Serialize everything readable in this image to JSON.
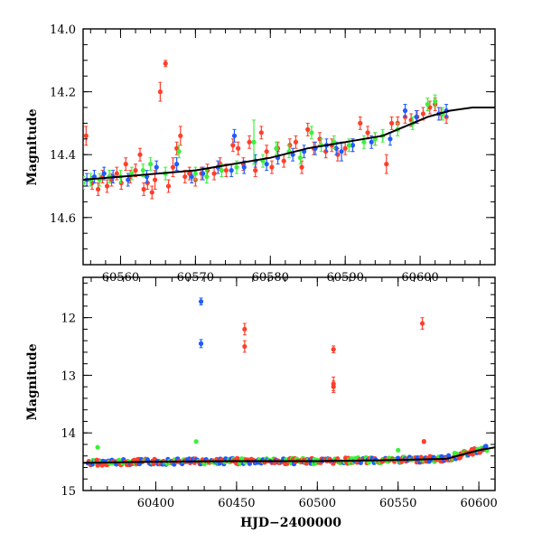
{
  "colors": {
    "red": "#ff3f2a",
    "blue": "#1f5bff",
    "green": "#3cf03c",
    "black": "#000000"
  },
  "chart_data": [
    {
      "type": "scatter",
      "ylabel": "Magnitude",
      "xlabel": "",
      "xlim": [
        60555,
        60610
      ],
      "ylim": [
        14.75,
        14.0
      ],
      "inverted_y": true,
      "xticks_major": [
        60560,
        60570,
        60580,
        60590,
        60600
      ],
      "yticks_major": [
        14.0,
        14.2,
        14.4,
        14.6
      ],
      "xtick_minor_step": 2,
      "ytick_minor_step": 0.05,
      "grid": false,
      "model_curve": {
        "x": [
          60555,
          60560,
          60565,
          60570,
          60575,
          60580,
          60585,
          60590,
          60595,
          60598,
          60601,
          60604,
          60607,
          60610
        ],
        "y": [
          14.48,
          14.47,
          14.46,
          14.45,
          14.43,
          14.41,
          14.38,
          14.36,
          14.34,
          14.31,
          14.28,
          14.26,
          14.25,
          14.25
        ]
      },
      "series": [
        {
          "color": "red",
          "points": [
            [
              60555.4,
              14.34,
              0.03
            ],
            [
              60556.2,
              14.49,
              0.02
            ],
            [
              60557.0,
              14.51,
              0.02
            ],
            [
              60557.6,
              14.47,
              0.02
            ],
            [
              60558.2,
              14.5,
              0.02
            ],
            [
              60558.8,
              14.48,
              0.02
            ],
            [
              60559.5,
              14.46,
              0.02
            ],
            [
              60560.1,
              14.49,
              0.02
            ],
            [
              60560.7,
              14.43,
              0.02
            ],
            [
              60561.3,
              14.47,
              0.02
            ],
            [
              60562.0,
              14.45,
              0.02
            ],
            [
              60562.6,
              14.4,
              0.02
            ],
            [
              60563.1,
              14.51,
              0.02
            ],
            [
              60563.6,
              14.49,
              0.02
            ],
            [
              60564.2,
              14.52,
              0.02
            ],
            [
              60564.6,
              14.48,
              0.03
            ],
            [
              60565.3,
              14.2,
              0.03
            ],
            [
              60566.0,
              14.11,
              0.01
            ],
            [
              60566.4,
              14.5,
              0.02
            ],
            [
              60567.0,
              14.44,
              0.03
            ],
            [
              60567.5,
              14.38,
              0.02
            ],
            [
              60568.0,
              14.34,
              0.03
            ],
            [
              60568.6,
              14.47,
              0.02
            ],
            [
              60569.2,
              14.46,
              0.02
            ],
            [
              60570.0,
              14.48,
              0.02
            ],
            [
              60570.8,
              14.46,
              0.02
            ],
            [
              60571.6,
              14.45,
              0.02
            ],
            [
              60572.5,
              14.46,
              0.02
            ],
            [
              60573.3,
              14.43,
              0.02
            ],
            [
              60574.1,
              14.45,
              0.02
            ],
            [
              60575.0,
              14.37,
              0.02
            ],
            [
              60575.7,
              14.38,
              0.02
            ],
            [
              60576.4,
              14.43,
              0.02
            ],
            [
              60577.2,
              14.36,
              0.02
            ],
            [
              60578.0,
              14.45,
              0.02
            ],
            [
              60578.8,
              14.33,
              0.02
            ],
            [
              60579.5,
              14.39,
              0.02
            ],
            [
              60580.2,
              14.44,
              0.02
            ],
            [
              60581.0,
              14.38,
              0.02
            ],
            [
              60581.8,
              14.42,
              0.02
            ],
            [
              60582.6,
              14.37,
              0.02
            ],
            [
              60583.4,
              14.36,
              0.02
            ],
            [
              60584.2,
              14.44,
              0.02
            ],
            [
              60585.0,
              14.32,
              0.02
            ],
            [
              60585.8,
              14.38,
              0.02
            ],
            [
              60586.6,
              14.35,
              0.02
            ],
            [
              60587.4,
              14.39,
              0.02
            ],
            [
              60588.2,
              14.37,
              0.02
            ],
            [
              60589.0,
              14.4,
              0.02
            ],
            [
              60590.0,
              14.38,
              0.02
            ],
            [
              60591.0,
              14.37,
              0.02
            ],
            [
              60592.0,
              14.3,
              0.02
            ],
            [
              60593.0,
              14.33,
              0.02
            ],
            [
              60594.0,
              14.35,
              0.02
            ],
            [
              60595.5,
              14.43,
              0.03
            ],
            [
              60596.2,
              14.3,
              0.02
            ],
            [
              60597.0,
              14.3,
              0.02
            ],
            [
              60598.0,
              14.28,
              0.02
            ],
            [
              60598.8,
              14.29,
              0.02
            ],
            [
              60599.6,
              14.28,
              0.02
            ],
            [
              60600.4,
              14.27,
              0.02
            ],
            [
              60601.3,
              14.25,
              0.02
            ],
            [
              60602.0,
              14.24,
              0.02
            ],
            [
              60602.8,
              14.27,
              0.02
            ],
            [
              60603.5,
              14.28,
              0.02
            ]
          ]
        },
        {
          "color": "blue",
          "points": [
            [
              60555.5,
              14.48,
              0.02
            ],
            [
              60556.5,
              14.47,
              0.02
            ],
            [
              60557.8,
              14.46,
              0.02
            ],
            [
              60559.0,
              14.47,
              0.02
            ],
            [
              60561.0,
              14.48,
              0.02
            ],
            [
              60563.5,
              14.47,
              0.02
            ],
            [
              60564.8,
              14.44,
              0.02
            ],
            [
              60567.5,
              14.43,
              0.02
            ],
            [
              60569.5,
              14.47,
              0.02
            ],
            [
              60571.0,
              14.46,
              0.02
            ],
            [
              60573.0,
              14.44,
              0.02
            ],
            [
              60574.8,
              14.45,
              0.02
            ],
            [
              60575.2,
              14.34,
              0.02
            ],
            [
              60576.5,
              14.44,
              0.02
            ],
            [
              60578.0,
              14.42,
              0.02
            ],
            [
              60579.5,
              14.43,
              0.02
            ],
            [
              60581.0,
              14.41,
              0.02
            ],
            [
              60583.0,
              14.4,
              0.02
            ],
            [
              60584.5,
              14.39,
              0.02
            ],
            [
              60586.0,
              14.38,
              0.02
            ],
            [
              60587.5,
              14.37,
              0.02
            ],
            [
              60588.8,
              14.38,
              0.02
            ],
            [
              60589.5,
              14.39,
              0.03
            ],
            [
              60591.0,
              14.37,
              0.02
            ],
            [
              60593.5,
              14.36,
              0.02
            ],
            [
              60596.0,
              14.35,
              0.02
            ],
            [
              60598.0,
              14.26,
              0.02
            ],
            [
              60599.5,
              14.28,
              0.02
            ],
            [
              60602.5,
              14.27,
              0.02
            ],
            [
              60603.5,
              14.26,
              0.02
            ]
          ]
        },
        {
          "color": "green",
          "points": [
            [
              60555.0,
              14.49,
              0.02
            ],
            [
              60556.0,
              14.48,
              0.02
            ],
            [
              60557.2,
              14.48,
              0.02
            ],
            [
              60558.5,
              14.47,
              0.02
            ],
            [
              60560.0,
              14.47,
              0.02
            ],
            [
              60561.5,
              14.46,
              0.02
            ],
            [
              60563.0,
              14.45,
              0.02
            ],
            [
              60564.0,
              14.43,
              0.02
            ],
            [
              60566.0,
              14.46,
              0.02
            ],
            [
              60567.8,
              14.39,
              0.02
            ],
            [
              60570.0,
              14.46,
              0.02
            ],
            [
              60571.5,
              14.47,
              0.02
            ],
            [
              60573.5,
              14.45,
              0.02
            ],
            [
              60575.5,
              14.44,
              0.02
            ],
            [
              60577.8,
              14.36,
              0.07
            ],
            [
              60579.0,
              14.42,
              0.02
            ],
            [
              60580.8,
              14.38,
              0.02
            ],
            [
              60582.5,
              14.39,
              0.02
            ],
            [
              60584.0,
              14.41,
              0.02
            ],
            [
              60585.5,
              14.33,
              0.02
            ],
            [
              60586.8,
              14.37,
              0.02
            ],
            [
              60588.5,
              14.36,
              0.02
            ],
            [
              60590.5,
              14.37,
              0.02
            ],
            [
              60592.5,
              14.36,
              0.02
            ],
            [
              60594.0,
              14.35,
              0.02
            ],
            [
              60595.0,
              14.34,
              0.02
            ],
            [
              60597.0,
              14.32,
              0.02
            ],
            [
              60599.0,
              14.3,
              0.02
            ],
            [
              60601.0,
              14.24,
              0.02
            ],
            [
              60602.0,
              14.23,
              0.02
            ],
            [
              60603.0,
              14.27,
              0.02
            ]
          ]
        }
      ]
    },
    {
      "type": "scatter",
      "ylabel": "Magnitude",
      "xlabel": "HJD−2400000",
      "xlim": [
        60355,
        60610
      ],
      "ylim": [
        15.0,
        11.3
      ],
      "inverted_y": true,
      "xticks_major": [
        60400,
        60450,
        60500,
        60550,
        60600
      ],
      "yticks_major": [
        12,
        13,
        14,
        15
      ],
      "xtick_minor_step": 10,
      "ytick_minor_step": 0.2,
      "grid": false,
      "model_curve": {
        "x": [
          60355,
          60400,
          60450,
          60500,
          60550,
          60580,
          60600,
          60610
        ],
        "y": [
          14.52,
          14.5,
          14.49,
          14.49,
          14.47,
          14.45,
          14.3,
          14.25
        ]
      },
      "outliers": [
        {
          "color": "blue",
          "points": [
            [
              60428,
              11.72,
              0.06
            ],
            [
              60428,
              12.45,
              0.07
            ]
          ]
        },
        {
          "color": "red",
          "points": [
            [
              60455,
              12.2,
              0.1
            ],
            [
              60455,
              12.5,
              0.1
            ],
            [
              60510,
              12.55,
              0.06
            ],
            [
              60510,
              13.15,
              0.12
            ],
            [
              60510,
              13.2,
              0.1
            ],
            [
              60565,
              12.1,
              0.1
            ],
            [
              60566,
              14.15,
              0.03
            ]
          ]
        },
        {
          "color": "green",
          "points": [
            [
              60364,
              14.25,
              0.02
            ],
            [
              60425,
              14.15,
              0.02
            ],
            [
              60550,
              14.3,
              0.02
            ],
            [
              60585,
              14.35,
              0.02
            ]
          ]
        }
      ]
    }
  ]
}
